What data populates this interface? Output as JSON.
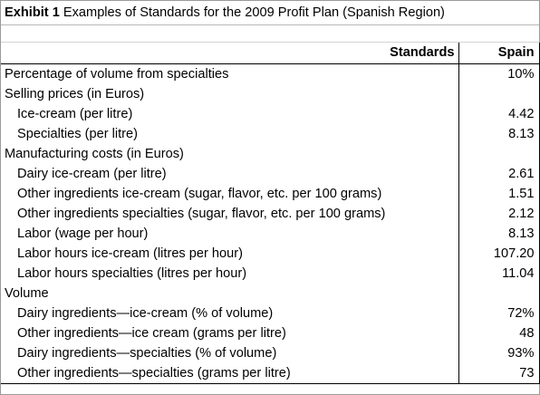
{
  "title": {
    "prefix": "Exhibit 1",
    "text": "Examples of Standards for the 2009 Profit Plan (Spanish Region)"
  },
  "table": {
    "header": {
      "label": "Standards",
      "value": "Spain"
    },
    "rows": [
      {
        "label": "Percentage of volume from specialties",
        "value": "10%",
        "indent": false
      },
      {
        "label": "Selling prices (in Euros)",
        "value": "",
        "indent": false
      },
      {
        "label": "Ice-cream (per litre)",
        "value": "4.42",
        "indent": true
      },
      {
        "label": "Specialties (per litre)",
        "value": "8.13",
        "indent": true
      },
      {
        "label": "Manufacturing costs (in Euros)",
        "value": "",
        "indent": false
      },
      {
        "label": "Dairy ice-cream (per litre)",
        "value": "2.61",
        "indent": true
      },
      {
        "label": "Other ingredients ice-cream (sugar, flavor, etc. per 100 grams)",
        "value": "1.51",
        "indent": true
      },
      {
        "label": "Other ingredients specialties (sugar, flavor, etc. per 100 grams)",
        "value": "2.12",
        "indent": true
      },
      {
        "label": "Labor (wage per hour)",
        "value": "8.13",
        "indent": true
      },
      {
        "label": "Labor hours ice-cream (litres per hour)",
        "value": "107.20",
        "indent": true
      },
      {
        "label": "Labor hours specialties (litres per hour)",
        "value": "11.04",
        "indent": true
      },
      {
        "label": "Volume",
        "value": "",
        "indent": false
      },
      {
        "label": "Dairy ingredients—ice-cream (% of volume)",
        "value": "72%",
        "indent": true
      },
      {
        "label": "Other ingredients—ice cream (grams per litre)",
        "value": "48",
        "indent": true
      },
      {
        "label": "Dairy ingredients—specialties (% of volume)",
        "value": "93%",
        "indent": true
      },
      {
        "label": "Other ingredients—specialties (grams per litre)",
        "value": "73",
        "indent": true
      }
    ]
  }
}
